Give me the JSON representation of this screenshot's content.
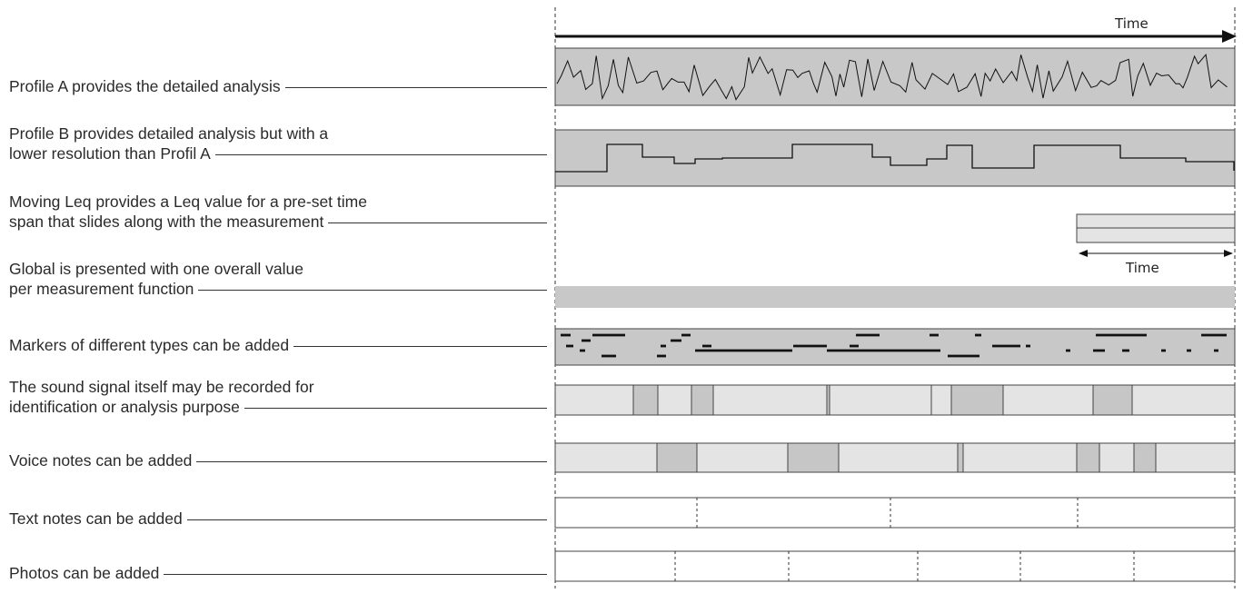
{
  "time_axis_label": "Time",
  "moving_leq_span_label": "Time",
  "rows": [
    {
      "id": "profile-a",
      "lines": [
        "Profile A provides the detailed analysis"
      ]
    },
    {
      "id": "profile-b",
      "lines": [
        "Profile B provides detailed analysis but with a",
        "lower resolution than Profil A"
      ]
    },
    {
      "id": "moving-leq",
      "lines": [
        "Moving Leq provides a Leq value for a pre-set time",
        "span that slides along with the measurement"
      ]
    },
    {
      "id": "global",
      "lines": [
        "Global is presented with one overall value",
        "per measurement function"
      ]
    },
    {
      "id": "markers",
      "lines": [
        "Markers of different types can be added"
      ]
    },
    {
      "id": "sound-recording",
      "lines": [
        "The sound signal itself may be recorded for",
        "identification or analysis purpose"
      ]
    },
    {
      "id": "voice-notes",
      "lines": [
        "Voice notes can be added"
      ]
    },
    {
      "id": "text-notes",
      "lines": [
        "Text notes can be added"
      ]
    },
    {
      "id": "photos",
      "lines": [
        "Photos can be added"
      ]
    }
  ],
  "colors": {
    "band_dark": "#c8c8c8",
    "band_light": "#e4e4e4",
    "segment": "#c6c6c6",
    "stroke": "#444444",
    "line": "#111111"
  }
}
